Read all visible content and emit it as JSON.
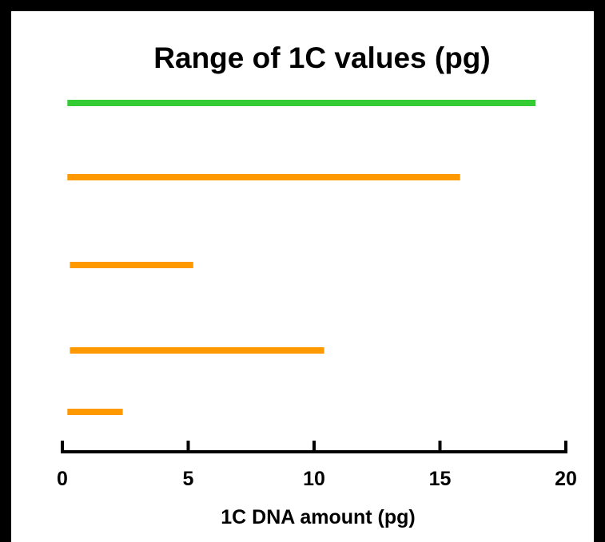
{
  "chart_data": {
    "type": "range",
    "title": "Range of 1C values (pg)",
    "xlabel": "1C DNA amount (pg)",
    "ylabel": "",
    "xlim": [
      0,
      20
    ],
    "xticks": [
      0,
      5,
      10,
      15,
      20
    ],
    "xtick_labels": [
      "0",
      "5",
      "10",
      "15",
      "20"
    ],
    "grid": false,
    "series": [
      {
        "min": 0.2,
        "max": 18.8,
        "color": "#33cc33"
      },
      {
        "min": 0.2,
        "max": 15.8,
        "color": "#ff9900"
      },
      {
        "min": 0.3,
        "max": 5.2,
        "color": "#ff9900"
      },
      {
        "min": 0.3,
        "max": 10.4,
        "color": "#ff9900"
      },
      {
        "min": 0.2,
        "max": 2.4,
        "color": "#ff9900"
      }
    ]
  }
}
